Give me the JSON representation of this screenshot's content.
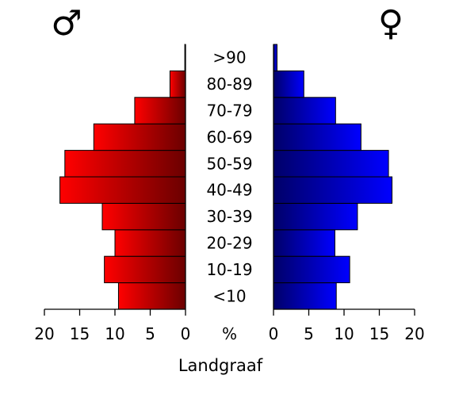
{
  "chart_data": {
    "type": "bar",
    "title": "",
    "xlabel": "Landgraaf",
    "unit_label": "%",
    "categories": [
      "<10",
      "10-19",
      "20-29",
      "30-39",
      "40-49",
      "50-59",
      "60-69",
      "70-79",
      "80-89",
      ">90"
    ],
    "series": [
      {
        "name": "♂",
        "values": [
          9.5,
          11.5,
          10.0,
          11.8,
          17.8,
          17.1,
          13.0,
          7.2,
          2.2,
          0.1
        ],
        "colors": {
          "light": "#ff0000",
          "dark": "#6b0000"
        }
      },
      {
        "name": "♀",
        "values": [
          8.9,
          10.8,
          8.7,
          11.9,
          16.8,
          16.3,
          12.4,
          8.8,
          4.3,
          0.5
        ],
        "colors": {
          "light": "#0000ff",
          "dark": "#000068"
        }
      }
    ],
    "xlim": [
      0,
      20
    ],
    "x_ticks": [
      "20",
      "15",
      "10",
      "5",
      "0"
    ],
    "x_ticks_right": [
      "0",
      "5",
      "10",
      "15",
      "20"
    ],
    "grid": false,
    "legend": "none"
  }
}
